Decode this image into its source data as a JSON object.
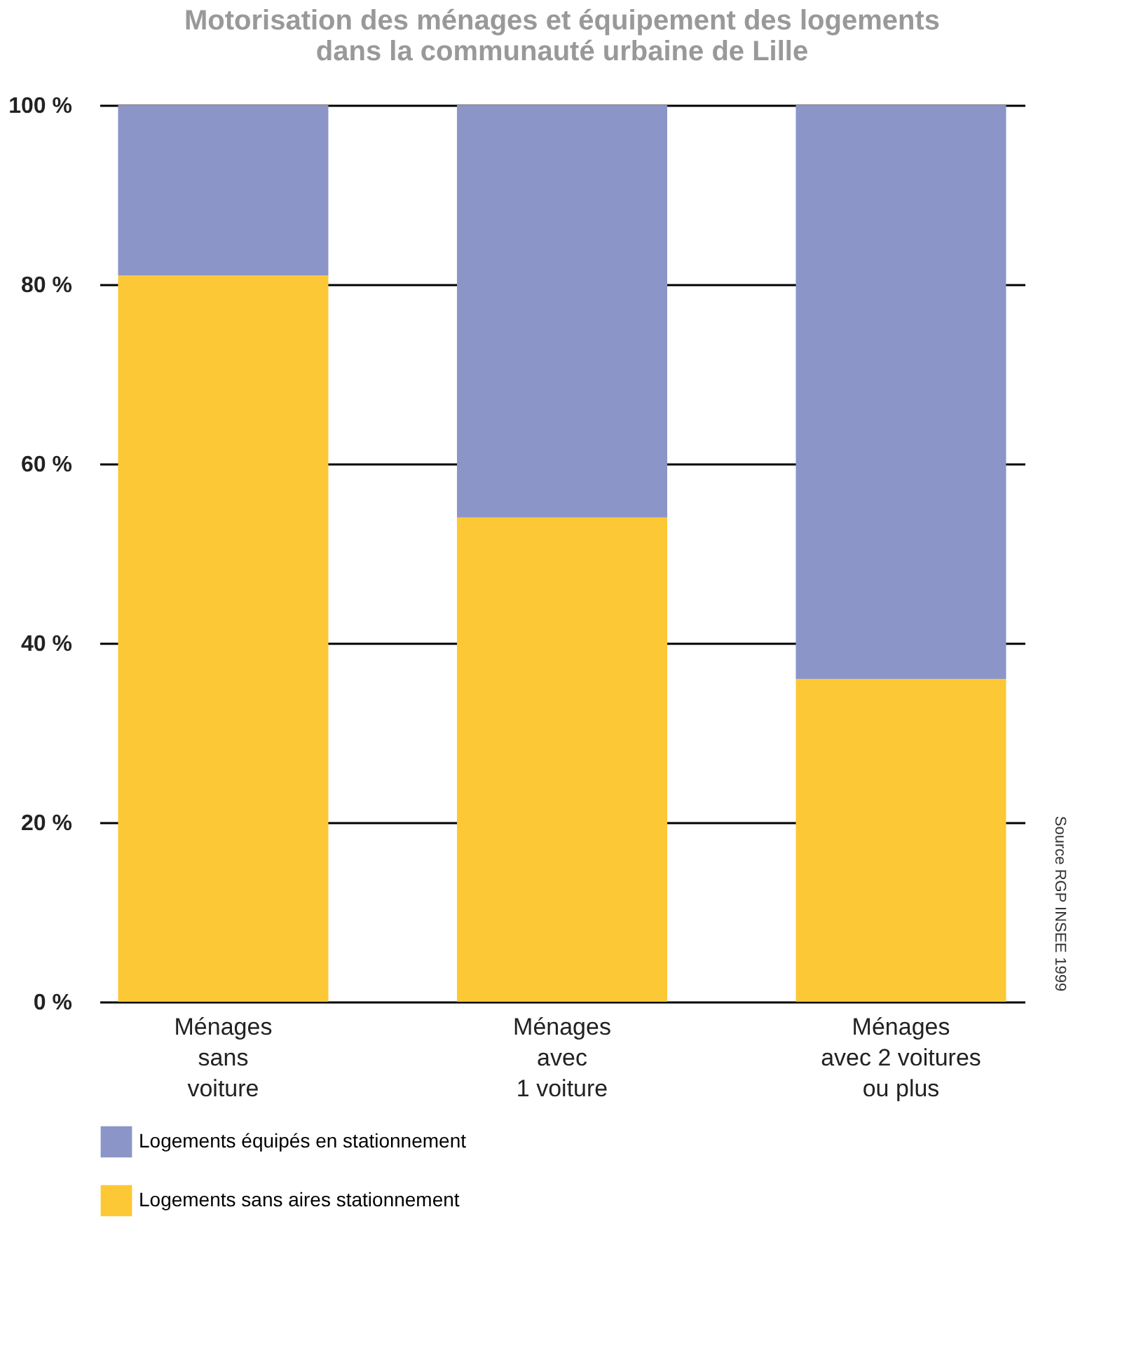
{
  "chart_data": {
    "type": "bar",
    "stacked": true,
    "title": [
      "Motorisation des ménages et équipement des logements",
      "dans la communauté urbaine de Lille"
    ],
    "categories": [
      "Ménages\nsans\nvoiture",
      "Ménages\navec\n1 voiture",
      "Ménages\navec 2 voitures\nou plus"
    ],
    "series": [
      {
        "name": "Logements sans aires stationnement",
        "color": "#fdc835",
        "values": [
          81,
          54,
          36
        ]
      },
      {
        "name": "Logements équipés en stationnement",
        "color": "#8b95c8",
        "values": [
          19,
          46,
          64
        ]
      }
    ],
    "ylim": [
      0,
      100
    ],
    "yticks": [
      {
        "value": 0,
        "label": "0 %"
      },
      {
        "value": 20,
        "label": "20 %"
      },
      {
        "value": 40,
        "label": "40 %"
      },
      {
        "value": 60,
        "label": "60 %"
      },
      {
        "value": 80,
        "label": "80 %"
      },
      {
        "value": 100,
        "label": "100 %"
      }
    ],
    "grid": "y",
    "legend": "bottom",
    "annotations": [
      "Source RGP INSEE 1999"
    ]
  }
}
